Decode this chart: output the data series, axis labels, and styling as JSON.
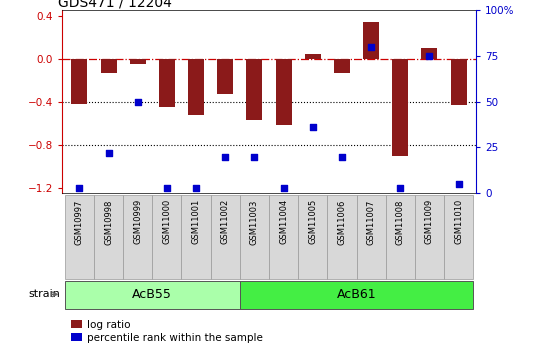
{
  "title": "GDS471 / 12204",
  "samples": [
    "GSM10997",
    "GSM10998",
    "GSM10999",
    "GSM11000",
    "GSM11001",
    "GSM11002",
    "GSM11003",
    "GSM11004",
    "GSM11005",
    "GSM11006",
    "GSM11007",
    "GSM11008",
    "GSM11009",
    "GSM11010"
  ],
  "log_ratio": [
    -0.42,
    -0.13,
    -0.05,
    -0.45,
    -0.52,
    -0.33,
    -0.57,
    -0.62,
    0.04,
    -0.13,
    0.34,
    -0.9,
    0.1,
    -0.43
  ],
  "percentile_rank": [
    3,
    22,
    50,
    3,
    3,
    20,
    20,
    3,
    36,
    20,
    80,
    3,
    75,
    5
  ],
  "groups": [
    {
      "name": "AcB55",
      "start": 0,
      "end": 5,
      "color": "#aaffaa"
    },
    {
      "name": "AcB61",
      "start": 6,
      "end": 13,
      "color": "#44ee44"
    }
  ],
  "ylim": [
    -1.25,
    0.45
  ],
  "ylim_display": [
    -1.2,
    0.4
  ],
  "yticks_left": [
    -1.2,
    -0.8,
    -0.4,
    0.0,
    0.4
  ],
  "yticks_right": [
    0,
    25,
    50,
    75,
    100
  ],
  "bar_color": "#8B1A1A",
  "dot_color": "#0000CC",
  "hline_color": "#CC0000",
  "dotted_line_color": "black",
  "plot_bg_color": "#ffffff",
  "left_tick_color": "#CC0000",
  "right_tick_color": "#0000CC",
  "bar_width": 0.55,
  "figsize": [
    5.38,
    3.45
  ],
  "dpi": 100
}
